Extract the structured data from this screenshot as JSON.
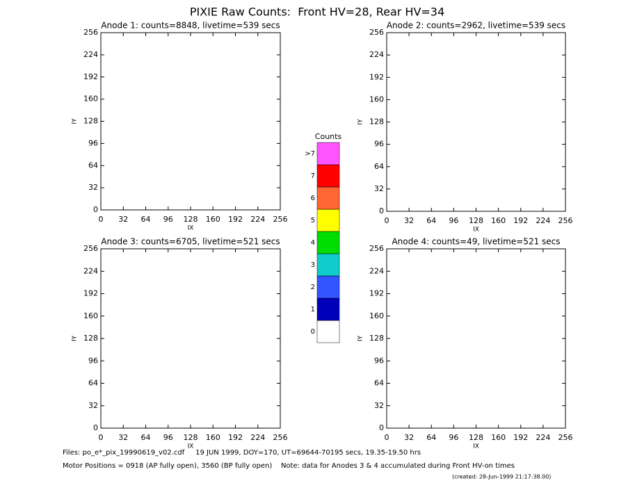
{
  "title": "PIXIE Raw Counts:  Front HV=28, Rear HV=34",
  "chart_data": [
    {
      "type": "scatter",
      "title": "Anode 1: counts=8848, livetime=539 secs",
      "xlabel": "IX",
      "ylabel": "IY",
      "xlim": [
        0,
        256
      ],
      "ylim": [
        0,
        256
      ],
      "xticks": [
        0,
        32,
        64,
        96,
        128,
        160,
        192,
        224,
        256
      ],
      "yticks": [
        0,
        32,
        64,
        96,
        128,
        160,
        192,
        224,
        256
      ]
    },
    {
      "type": "scatter",
      "title": "Anode 2: counts=2962, livetime=539 secs",
      "xlabel": "IX",
      "ylabel": "IY",
      "xlim": [
        0,
        256
      ],
      "ylim": [
        0,
        256
      ],
      "xticks": [
        0,
        32,
        64,
        96,
        128,
        160,
        192,
        224,
        256
      ],
      "yticks": [
        0,
        32,
        64,
        96,
        128,
        160,
        192,
        224,
        256
      ]
    },
    {
      "type": "scatter",
      "title": "Anode 3: counts=6705, livetime=521 secs",
      "xlabel": "IX",
      "ylabel": "IY",
      "xlim": [
        0,
        256
      ],
      "ylim": [
        0,
        256
      ],
      "xticks": [
        0,
        32,
        64,
        96,
        128,
        160,
        192,
        224,
        256
      ],
      "yticks": [
        0,
        32,
        64,
        96,
        128,
        160,
        192,
        224,
        256
      ]
    },
    {
      "type": "scatter",
      "title": "Anode 4: counts=49, livetime=521 secs",
      "xlabel": "IX",
      "ylabel": "IY",
      "xlim": [
        0,
        256
      ],
      "ylim": [
        0,
        256
      ],
      "xticks": [
        0,
        32,
        64,
        96,
        128,
        160,
        192,
        224,
        256
      ],
      "yticks": [
        0,
        32,
        64,
        96,
        128,
        160,
        192,
        224,
        256
      ]
    }
  ],
  "colorbar": {
    "title": "Counts",
    "categories": [
      "0",
      "1",
      "2",
      "3",
      "4",
      "5",
      "6",
      "7",
      ">7"
    ],
    "colors": [
      "#ffffff",
      "#0000bb",
      "#3355ff",
      "#11cccc",
      "#00dd00",
      "#ffff00",
      "#ff6633",
      "#ff0000",
      "#ff55ff"
    ]
  },
  "footer": {
    "files": "Files: po_e*_pix_19990619_v02.cdf     19 JUN 1999, DOY=170, UT=69644-70195 secs, 19.35-19.50 hrs",
    "motor": "Motor Positions = 0918 (AP fully open), 3560 (BP fully open)    Note: data for Anodes 3 & 4 accumulated during Front HV-on times",
    "created": "(created: 28-Jun-1999 21:17:38.00)"
  }
}
